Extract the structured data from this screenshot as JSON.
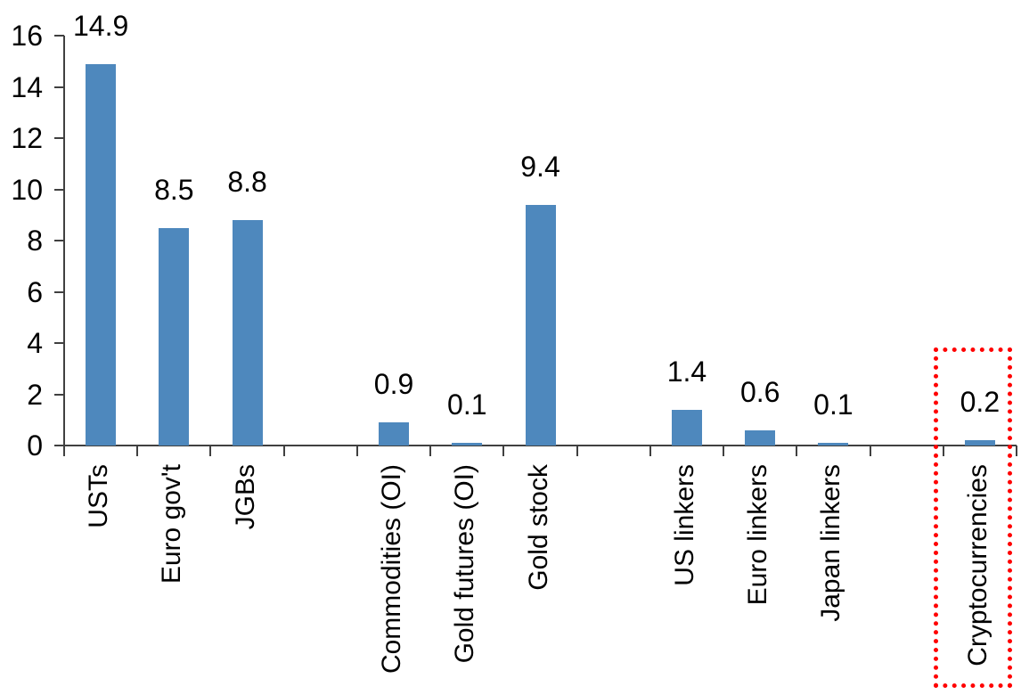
{
  "chart_data": {
    "type": "bar",
    "title": "",
    "xlabel": "",
    "ylabel": "",
    "categories": [
      "USTs",
      "Euro gov't",
      "JGBs",
      "",
      "Commodities (OI)",
      "Gold futures (OI)",
      "Gold stock",
      "",
      "US linkers",
      "Euro linkers",
      "Japan linkers",
      "",
      "Cryptocurrencies"
    ],
    "values": [
      14.9,
      8.5,
      8.8,
      null,
      0.9,
      0.1,
      9.4,
      null,
      1.4,
      0.6,
      0.1,
      null,
      0.2
    ],
    "data_labels": [
      "14.9",
      "8.5",
      "8.8",
      null,
      "0.9",
      "0.1",
      "9.4",
      null,
      "1.4",
      "0.6",
      "0.1",
      null,
      "0.2"
    ],
    "y_ticks": [
      "0",
      "2",
      "4",
      "6",
      "8",
      "10",
      "12",
      "14",
      "16"
    ],
    "ylim": [
      0,
      16
    ],
    "grid": false,
    "legend": false,
    "bar_color": "#4e88bd",
    "axis_color": "#404040",
    "text_color": "#000000",
    "highlight": {
      "category": "Cryptocurrencies",
      "slot_index": 12,
      "style": "red-dotted-box",
      "box_color": "#ff0000"
    }
  }
}
